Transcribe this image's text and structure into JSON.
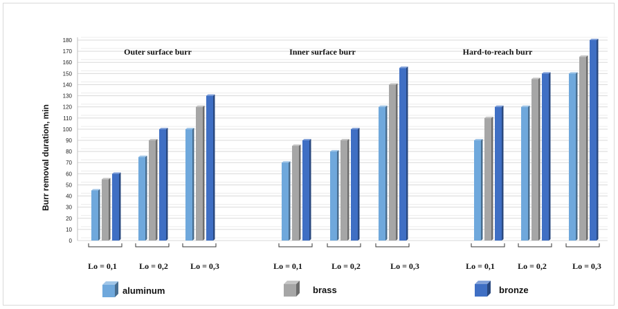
{
  "chart_data": {
    "type": "bar",
    "ylabel": "Burr removal duration, min",
    "ylim": [
      0,
      180
    ],
    "ytick_step": 10,
    "grid": true,
    "legend_placement": "bottom",
    "groups": [
      {
        "title": "Outer surface burr",
        "categories": [
          "Lo = 0,1",
          "Lo = 0,2",
          "Lo = 0,3"
        ],
        "series": [
          {
            "name": "aluminum",
            "values": [
              45,
              75,
              100
            ]
          },
          {
            "name": "brass",
            "values": [
              55,
              90,
              120
            ]
          },
          {
            "name": "bronze",
            "values": [
              60,
              100,
              130
            ]
          }
        ]
      },
      {
        "title": "Inner surface burr",
        "categories": [
          "Lo = 0,1",
          "Lo = 0,2",
          "Lo = 0,3"
        ],
        "series": [
          {
            "name": "aluminum",
            "values": [
              70,
              80,
              120
            ]
          },
          {
            "name": "brass",
            "values": [
              85,
              90,
              140
            ]
          },
          {
            "name": "bronze",
            "values": [
              90,
              100,
              155
            ]
          }
        ]
      },
      {
        "title": "Hard-to-reach burr",
        "categories": [
          "Lo = 0,1",
          "Lo = 0,2",
          "Lo = 0,3"
        ],
        "series": [
          {
            "name": "aluminum",
            "values": [
              90,
              120,
              150
            ]
          },
          {
            "name": "brass",
            "values": [
              110,
              145,
              165
            ]
          },
          {
            "name": "bronze",
            "values": [
              120,
              150,
              180
            ]
          }
        ]
      }
    ],
    "legend": [
      {
        "name": "aluminum",
        "color": "#6fa8dc"
      },
      {
        "name": "brass",
        "color": "#a6a6a6"
      },
      {
        "name": "bronze",
        "color": "#3f6fc4"
      }
    ]
  }
}
